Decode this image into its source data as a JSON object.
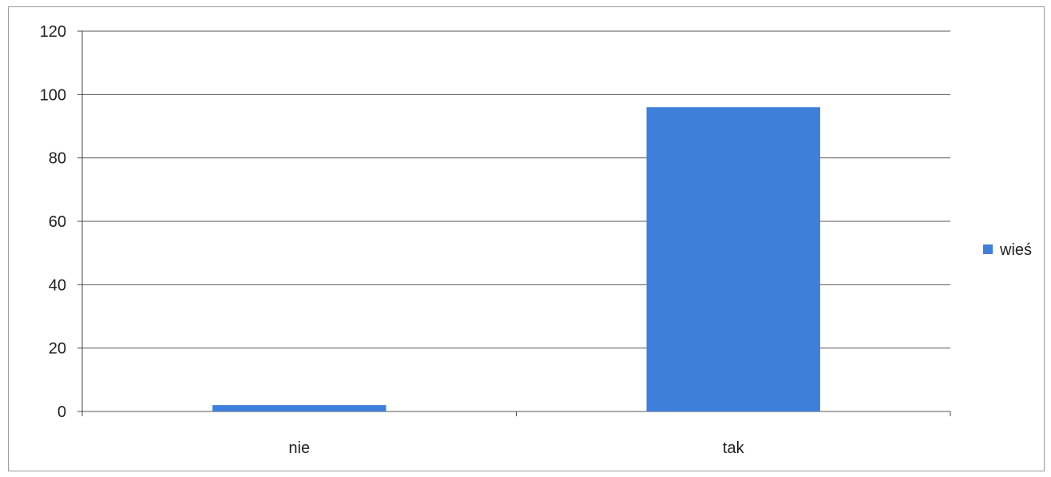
{
  "chart_data": {
    "type": "bar",
    "categories": [
      "nie",
      "tak"
    ],
    "series": [
      {
        "name": "wieś",
        "values": [
          2,
          96
        ]
      }
    ],
    "ylim": [
      0,
      120
    ],
    "yticks": [
      0,
      20,
      40,
      60,
      80,
      100,
      120
    ],
    "grid": true,
    "legend_position": "right",
    "colors": {
      "bar": "#3f7fdc",
      "grid": "#555555",
      "axis": "#444444"
    }
  }
}
